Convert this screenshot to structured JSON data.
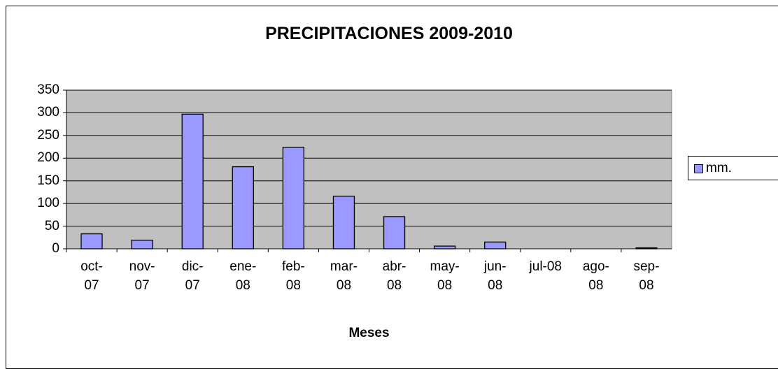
{
  "chart_data": {
    "type": "bar",
    "title": "PRECIPITACIONES 2009-2010",
    "x_label": "Meses",
    "categories": [
      "oct-07",
      "nov-07",
      "dic-07",
      "ene-08",
      "feb-08",
      "mar-08",
      "abr-08",
      "may-08",
      "jun-08",
      "jul-08",
      "ago-08",
      "sep-08"
    ],
    "series": [
      {
        "name": "mm.",
        "color": "#9999ff",
        "values": [
          33,
          19,
          297,
          181,
          224,
          116,
          71,
          6,
          15,
          0,
          0,
          2
        ]
      }
    ],
    "ylim": [
      0,
      350
    ],
    "yticks": [
      0,
      50,
      100,
      150,
      200,
      250,
      300,
      350
    ],
    "grid": true,
    "legend": "right",
    "plot_background": "#c0c0c0"
  }
}
